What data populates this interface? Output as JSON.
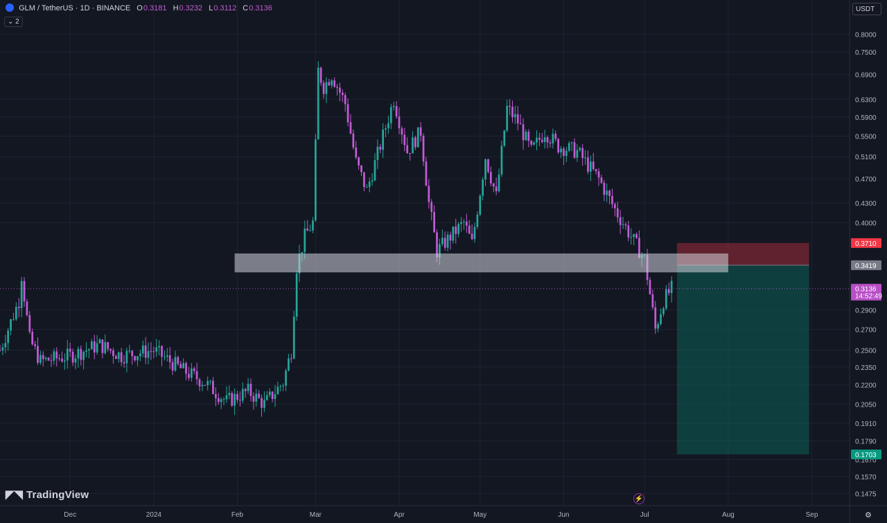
{
  "header": {
    "symbol": "GLM / TetherUS · 1D · BINANCE",
    "o_label": "O",
    "o_value": "0.3181",
    "h_label": "H",
    "h_value": "0.3232",
    "l_label": "L",
    "l_value": "0.3112",
    "c_label": "C",
    "c_value": "0.3136",
    "indicator_badge": "⌄ 2"
  },
  "currency_button": "USDT",
  "branding": "TradingView",
  "colors": {
    "background": "#131722",
    "bull": "#26a69a",
    "bear": "#c25cd6",
    "stop_zone": "#f23645",
    "target_zone": "#089981",
    "zone_box": "#d1d4dc"
  },
  "chart_data": {
    "type": "candlestick",
    "y_scale": "log",
    "ylim": [
      0.141,
      0.82
    ],
    "x_range": [
      "2023-11-05",
      "2024-09-15"
    ],
    "x_ticks": [
      {
        "label": "Dec",
        "date": "2023-12-01"
      },
      {
        "label": "2024",
        "date": "2024-01-01"
      },
      {
        "label": "Feb",
        "date": "2024-02-01"
      },
      {
        "label": "Mar",
        "date": "2024-03-01"
      },
      {
        "label": "Apr",
        "date": "2024-04-01"
      },
      {
        "label": "May",
        "date": "2024-05-01"
      },
      {
        "label": "Jun",
        "date": "2024-06-01"
      },
      {
        "label": "Jul",
        "date": "2024-07-01"
      },
      {
        "label": "Aug",
        "date": "2024-08-01"
      },
      {
        "label": "Sep",
        "date": "2024-09-01"
      }
    ],
    "y_ticks": [
      "0.8000",
      "0.7500",
      "0.6900",
      "0.6300",
      "0.5900",
      "0.5500",
      "0.5100",
      "0.4700",
      "0.4300",
      "0.4000",
      "0.2900",
      "0.2700",
      "0.2500",
      "0.2350",
      "0.2200",
      "0.2050",
      "0.1910",
      "0.1790",
      "0.1670",
      "0.1570",
      "0.1475"
    ],
    "close_path": [
      [
        "2023-11-05",
        0.25
      ],
      [
        "2023-11-12",
        0.3
      ],
      [
        "2023-11-13",
        0.33
      ],
      [
        "2023-11-16",
        0.26
      ],
      [
        "2023-11-20",
        0.24
      ],
      [
        "2023-12-01",
        0.245
      ],
      [
        "2023-12-12",
        0.255
      ],
      [
        "2023-12-20",
        0.245
      ],
      [
        "2024-01-01",
        0.25
      ],
      [
        "2024-01-12",
        0.232
      ],
      [
        "2024-01-20",
        0.222
      ],
      [
        "2024-01-28",
        0.207
      ],
      [
        "2024-02-05",
        0.215
      ],
      [
        "2024-02-11",
        0.205
      ],
      [
        "2024-02-18",
        0.222
      ],
      [
        "2024-02-21",
        0.25
      ],
      [
        "2024-02-23",
        0.34
      ],
      [
        "2024-02-26",
        0.38
      ],
      [
        "2024-02-29",
        0.4
      ],
      [
        "2024-03-02",
        0.7
      ],
      [
        "2024-03-04",
        0.66
      ],
      [
        "2024-03-07",
        0.69
      ],
      [
        "2024-03-12",
        0.62
      ],
      [
        "2024-03-16",
        0.5
      ],
      [
        "2024-03-20",
        0.45
      ],
      [
        "2024-03-26",
        0.55
      ],
      [
        "2024-03-30",
        0.63
      ],
      [
        "2024-04-04",
        0.52
      ],
      [
        "2024-04-09",
        0.56
      ],
      [
        "2024-04-12",
        0.43
      ],
      [
        "2024-04-15",
        0.36
      ],
      [
        "2024-04-20",
        0.38
      ],
      [
        "2024-04-25",
        0.4
      ],
      [
        "2024-04-28",
        0.37
      ],
      [
        "2024-05-03",
        0.51
      ],
      [
        "2024-05-07",
        0.44
      ],
      [
        "2024-05-11",
        0.61
      ],
      [
        "2024-05-15",
        0.58
      ],
      [
        "2024-05-20",
        0.52
      ],
      [
        "2024-05-25",
        0.56
      ],
      [
        "2024-05-30",
        0.53
      ],
      [
        "2024-06-06",
        0.52
      ],
      [
        "2024-06-14",
        0.47
      ],
      [
        "2024-06-20",
        0.42
      ],
      [
        "2024-06-26",
        0.38
      ],
      [
        "2024-07-01",
        0.35
      ],
      [
        "2024-07-05",
        0.27
      ],
      [
        "2024-07-08",
        0.3
      ],
      [
        "2024-07-11",
        0.3136
      ]
    ],
    "annotations": {
      "zone_box": {
        "date_from": "2024-01-31",
        "date_to": "2024-08-01",
        "price_high": 0.357,
        "price_low": 0.333
      },
      "position": {
        "date_from": "2024-07-13",
        "date_to": "2024-08-31",
        "stop": 0.371,
        "entry": 0.3419,
        "target": 0.1703
      }
    },
    "price_labels": [
      {
        "name": "stop-price-label",
        "value": "0.3710",
        "color": "#f23645"
      },
      {
        "name": "entry-price-label",
        "value": "0.3419",
        "color": "#787b86"
      },
      {
        "name": "last-price-label",
        "value": "0.3136",
        "countdown": "14:52:49",
        "color": "#b84fc6"
      },
      {
        "name": "target-price-label",
        "value": "0.1703",
        "color": "#089981"
      }
    ],
    "last_price": 0.3136,
    "grid": true
  }
}
